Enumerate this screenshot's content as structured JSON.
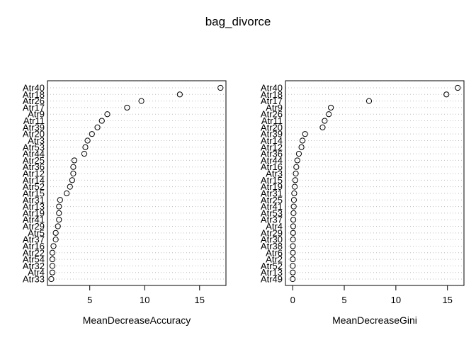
{
  "title": "bag_divorce",
  "chart_data": [
    {
      "type": "scatter",
      "style": "dotchart",
      "xlabel": "MeanDecreaseAccuracy",
      "xlim": [
        1.15,
        17.4
      ],
      "xticks": [
        5,
        10,
        15
      ],
      "categories": [
        "Atr40",
        "Atr18",
        "Atr26",
        "Atr17",
        "Atr9",
        "Atr11",
        "Atr39",
        "Atr20",
        "Atr3",
        "Atr53",
        "Atr44",
        "Atr25",
        "Atr36",
        "Atr12",
        "Atr14",
        "Atr52",
        "Atr15",
        "Atr31",
        "Atr13",
        "Atr19",
        "Atr41",
        "Atr29",
        "Atr5",
        "Atr37",
        "Atr16",
        "Atr22",
        "Atr54",
        "Atr32",
        "Atr4",
        "Atr33"
      ],
      "values": [
        16.9,
        13.2,
        9.7,
        8.4,
        6.6,
        6.1,
        5.7,
        5.2,
        4.8,
        4.6,
        4.5,
        3.6,
        3.5,
        3.5,
        3.4,
        3.2,
        2.9,
        2.3,
        2.2,
        2.2,
        2.2,
        2.1,
        1.9,
        1.9,
        1.7,
        1.6,
        1.6,
        1.6,
        1.6,
        1.5
      ]
    },
    {
      "type": "scatter",
      "style": "dotchart",
      "xlabel": "MeanDecreaseGini",
      "xlim": [
        -0.7,
        16.6
      ],
      "xticks": [
        0,
        5,
        10,
        15
      ],
      "categories": [
        "Atr40",
        "Atr18",
        "Atr17",
        "Atr9",
        "Atr26",
        "Atr11",
        "Atr20",
        "Atr39",
        "Atr14",
        "Atr12",
        "Atr36",
        "Atr44",
        "Atr16",
        "Atr3",
        "Atr15",
        "Atr19",
        "Atr31",
        "Atr25",
        "Atr41",
        "Atr53",
        "Atr37",
        "Atr4",
        "Atr29",
        "Atr30",
        "Atr38",
        "Atr6",
        "Atr2",
        "Atr52",
        "Atr13",
        "Atr49"
      ],
      "values": [
        16.0,
        14.9,
        7.4,
        3.7,
        3.5,
        3.1,
        2.9,
        1.2,
        0.95,
        0.85,
        0.6,
        0.45,
        0.35,
        0.3,
        0.25,
        0.2,
        0.15,
        0.12,
        0.1,
        0.08,
        0.06,
        0.05,
        0.04,
        0.03,
        0.02,
        0.02,
        0.01,
        0.01,
        0.01,
        0.0
      ]
    }
  ]
}
